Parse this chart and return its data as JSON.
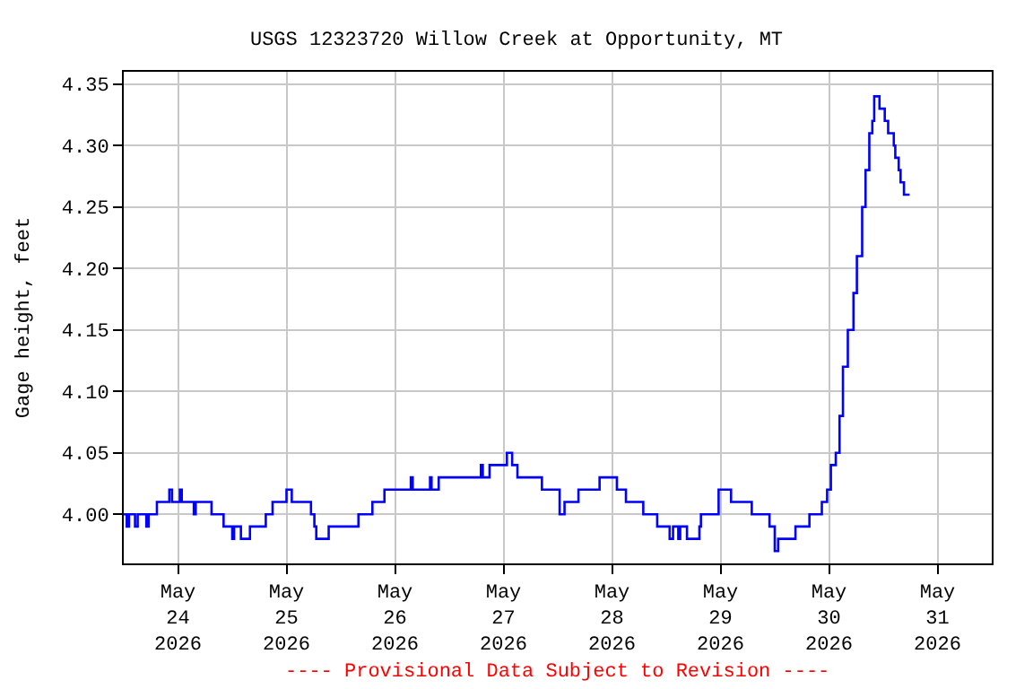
{
  "chart_data": {
    "type": "step",
    "title": "USGS 12323720 Willow Creek at Opportunity, MT",
    "ylabel": "Gage height, feet",
    "annotations": [
      "---- Provisional Data Subject to Revision ----"
    ],
    "x": [
      "2026-05-23T12:00",
      "2026-05-23T12:40",
      "2026-05-23T13:10",
      "2026-05-23T14:30",
      "2026-05-23T15:05",
      "2026-05-23T17:00",
      "2026-05-23T17:30",
      "2026-05-23T19:20",
      "2026-05-23T22:05",
      "2026-05-23T22:40",
      "2026-05-24T00:25",
      "2026-05-24T00:50",
      "2026-05-24T03:30",
      "2026-05-24T03:55",
      "2026-05-24T07:25",
      "2026-05-24T10:05",
      "2026-05-24T12:00",
      "2026-05-24T12:25",
      "2026-05-24T13:55",
      "2026-05-24T15:55",
      "2026-05-24T19:25",
      "2026-05-24T20:55",
      "2026-05-25T00:00",
      "2026-05-25T01:10",
      "2026-05-25T05:25",
      "2026-05-25T06:10",
      "2026-05-25T06:35",
      "2026-05-25T09:20",
      "2026-05-25T15:55",
      "2026-05-25T19:00",
      "2026-05-25T21:40",
      "2026-05-26T03:30",
      "2026-05-26T03:55",
      "2026-05-26T07:45",
      "2026-05-26T08:05",
      "2026-05-26T09:40",
      "2026-05-26T19:00",
      "2026-05-26T19:25",
      "2026-05-26T20:55",
      "2026-05-27T00:45",
      "2026-05-27T01:55",
      "2026-05-27T03:05",
      "2026-05-27T08:30",
      "2026-05-27T12:25",
      "2026-05-27T13:30",
      "2026-05-27T16:35",
      "2026-05-27T21:15",
      "2026-05-28T01:05",
      "2026-05-28T03:05",
      "2026-05-28T06:55",
      "2026-05-28T10:00",
      "2026-05-28T12:45",
      "2026-05-28T13:30",
      "2026-05-28T14:40",
      "2026-05-28T15:05",
      "2026-05-28T16:35",
      "2026-05-28T19:20",
      "2026-05-28T19:40",
      "2026-05-28T23:35",
      "2026-05-29T02:20",
      "2026-05-29T06:55",
      "2026-05-29T10:50",
      "2026-05-29T12:00",
      "2026-05-29T12:45",
      "2026-05-29T16:35",
      "2026-05-29T19:40",
      "2026-05-29T22:25",
      "2026-05-29T23:35",
      "2026-05-30T00:25",
      "2026-05-30T01:30",
      "2026-05-30T02:20",
      "2026-05-30T03:05",
      "2026-05-30T04:10",
      "2026-05-30T05:25",
      "2026-05-30T06:10",
      "2026-05-30T07:20",
      "2026-05-30T08:05",
      "2026-05-30T08:55",
      "2026-05-30T09:35",
      "2026-05-30T10:00",
      "2026-05-30T11:10",
      "2026-05-30T12:20",
      "2026-05-30T13:05",
      "2026-05-30T14:20",
      "2026-05-30T14:40",
      "2026-05-30T15:25",
      "2026-05-30T15:50",
      "2026-05-30T16:35",
      "2026-05-30T17:50"
    ],
    "series": [
      {
        "color": "#0000ff",
        "values": [
          4.0,
          3.99,
          4.0,
          3.99,
          4.0,
          3.99,
          4.0,
          4.01,
          4.02,
          4.01,
          4.02,
          4.01,
          4.0,
          4.01,
          4.0,
          3.99,
          3.98,
          3.99,
          3.98,
          3.99,
          4.0,
          4.01,
          4.02,
          4.01,
          4.0,
          3.99,
          3.98,
          3.99,
          4.0,
          4.01,
          4.02,
          4.03,
          4.02,
          4.03,
          4.02,
          4.03,
          4.04,
          4.03,
          4.04,
          4.05,
          4.04,
          4.03,
          4.02,
          4.0,
          4.01,
          4.02,
          4.03,
          4.02,
          4.01,
          4.0,
          3.99,
          3.98,
          3.99,
          3.98,
          3.99,
          3.98,
          3.99,
          4.0,
          4.02,
          4.01,
          4.0,
          3.99,
          3.97,
          3.98,
          3.99,
          4.0,
          4.01,
          4.02,
          4.04,
          4.05,
          4.08,
          4.12,
          4.15,
          4.18,
          4.21,
          4.25,
          4.28,
          4.31,
          4.32,
          4.34,
          4.33,
          4.32,
          4.31,
          4.3,
          4.29,
          4.28,
          4.27,
          4.26,
          4.26
        ]
      }
    ],
    "xlim": [
      "2026-05-23T12:00",
      "2026-05-31T12:00"
    ],
    "xticks": [
      {
        "value": "2026-05-24",
        "label": "May\n24\n2026"
      },
      {
        "value": "2026-05-25",
        "label": "May\n25\n2026"
      },
      {
        "value": "2026-05-26",
        "label": "May\n26\n2026"
      },
      {
        "value": "2026-05-27",
        "label": "May\n27\n2026"
      },
      {
        "value": "2026-05-28",
        "label": "May\n28\n2026"
      },
      {
        "value": "2026-05-29",
        "label": "May\n29\n2026"
      },
      {
        "value": "2026-05-30",
        "label": "May\n30\n2026"
      },
      {
        "value": "2026-05-31",
        "label": "May\n31\n2026"
      }
    ],
    "ylim": [
      3.96,
      4.36
    ],
    "yticks": [
      {
        "value": 4.0,
        "label": "4.00"
      },
      {
        "value": 4.05,
        "label": "4.05"
      },
      {
        "value": 4.1,
        "label": "4.10"
      },
      {
        "value": 4.15,
        "label": "4.15"
      },
      {
        "value": 4.2,
        "label": "4.20"
      },
      {
        "value": 4.25,
        "label": "4.25"
      },
      {
        "value": 4.3,
        "label": "4.30"
      },
      {
        "value": 4.35,
        "label": "4.35"
      }
    ],
    "grid": true
  }
}
